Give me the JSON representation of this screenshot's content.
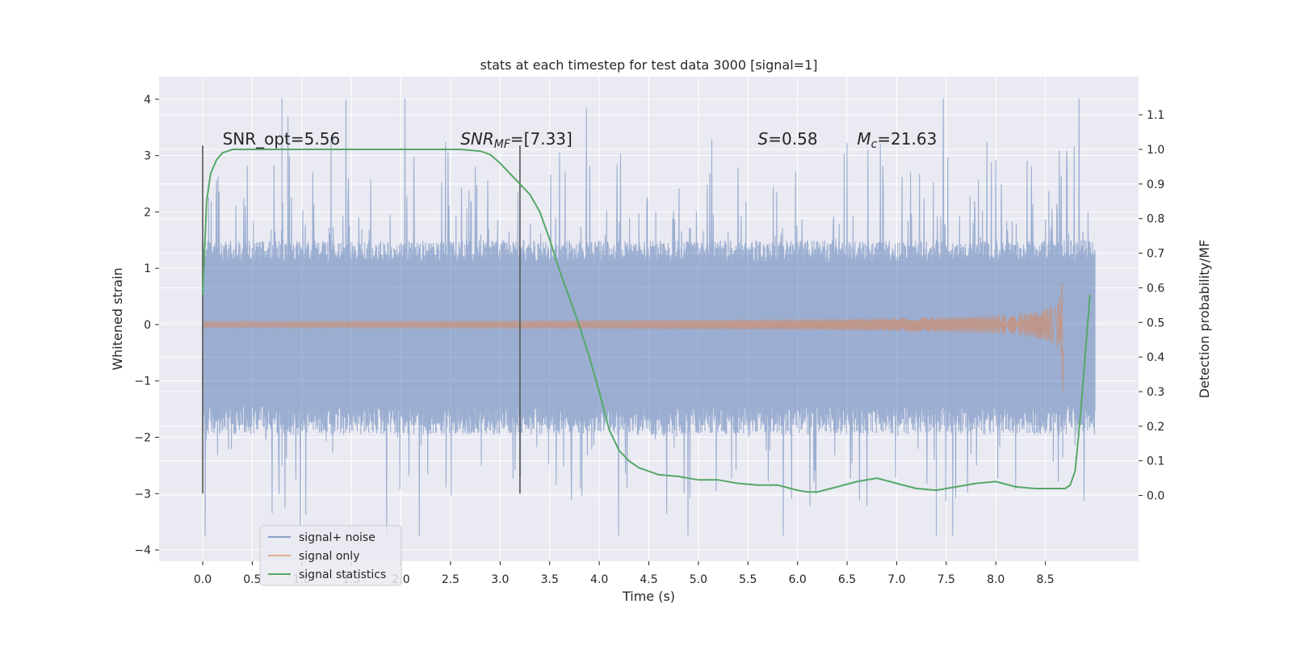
{
  "chart_data": {
    "type": "line",
    "title": "stats at each timestep for test data 3000 [signal=1]",
    "xlabel": "Time (s)",
    "ylabel_left": "Whitened strain",
    "ylabel_right": "Detection probability/MF",
    "xlim": [
      -0.44,
      9.44
    ],
    "ylim_left": [
      -4.2,
      4.4
    ],
    "ylim_right": [
      -0.19,
      1.21
    ],
    "x_ticks": [
      0.0,
      0.5,
      1.0,
      1.5,
      2.0,
      2.5,
      3.0,
      3.5,
      4.0,
      4.5,
      5.0,
      5.5,
      6.0,
      6.5,
      7.0,
      7.5,
      8.0,
      8.5
    ],
    "x_tick_labels": [
      "0.0",
      "0.5",
      "1.0",
      "1.5",
      "2.0",
      "2.5",
      "3.0",
      "3.5",
      "4.0",
      "4.5",
      "5.0",
      "5.5",
      "6.0",
      "6.5",
      "7.0",
      "7.5",
      "8.0",
      "8.5"
    ],
    "y_left_ticks": [
      4,
      3,
      2,
      1,
      0,
      -1,
      -2,
      -3,
      -4
    ],
    "y_left_tick_labels": [
      "4",
      "3",
      "2",
      "1",
      "0",
      "−1",
      "−2",
      "−3",
      "−4"
    ],
    "y_right_ticks": [
      1.1,
      1.0,
      0.9,
      0.8,
      0.7,
      0.6,
      0.5,
      0.4,
      0.3,
      0.2,
      0.1,
      0.0
    ],
    "y_right_tick_labels": [
      "1.1",
      "1.0",
      "0.9",
      "0.8",
      "0.7",
      "0.6",
      "0.5",
      "0.4",
      "0.3",
      "0.2",
      "0.1",
      "0.0"
    ],
    "colors": {
      "noise": "#4c72b0",
      "signal": "#dd8452",
      "stats": "#55a868",
      "background": "#eaeaf2",
      "grid": "#ffffff",
      "vline": "#555555"
    },
    "series": [
      {
        "name": "signal+ noise",
        "kind": "noisy-strain",
        "t_range": [
          0.0,
          9.0
        ],
        "core_band": [
          -1.7,
          1.3
        ],
        "typical_peak": [
          -3.3,
          3.3
        ],
        "max": 4.02,
        "min": -3.75
      },
      {
        "name": "signal only",
        "kind": "chirp",
        "t_range": [
          0.0,
          8.68
        ],
        "merger_time": 8.68,
        "peak_amplitude": 1.25
      },
      {
        "name": "signal statistics",
        "kind": "probability",
        "x": [
          0.0,
          0.04,
          0.08,
          0.14,
          0.2,
          0.3,
          0.5,
          1.0,
          2.0,
          2.6,
          2.8,
          2.9,
          3.0,
          3.1,
          3.2,
          3.3,
          3.4,
          3.5,
          3.6,
          3.7,
          3.8,
          3.9,
          4.0,
          4.1,
          4.2,
          4.3,
          4.4,
          4.5,
          4.6,
          4.8,
          5.0,
          5.2,
          5.4,
          5.6,
          5.8,
          6.0,
          6.1,
          6.2,
          6.4,
          6.6,
          6.8,
          7.0,
          7.2,
          7.4,
          7.6,
          7.8,
          8.0,
          8.2,
          8.4,
          8.6,
          8.7,
          8.75,
          8.8,
          8.85,
          8.9,
          8.95
        ],
        "y": [
          0.58,
          0.85,
          0.93,
          0.97,
          0.99,
          1.0,
          1.0,
          1.0,
          1.0,
          1.0,
          0.995,
          0.985,
          0.96,
          0.93,
          0.9,
          0.87,
          0.82,
          0.74,
          0.65,
          0.57,
          0.49,
          0.4,
          0.3,
          0.19,
          0.13,
          0.1,
          0.08,
          0.07,
          0.06,
          0.055,
          0.045,
          0.045,
          0.035,
          0.03,
          0.03,
          0.015,
          0.01,
          0.01,
          0.025,
          0.04,
          0.05,
          0.035,
          0.02,
          0.015,
          0.025,
          0.035,
          0.04,
          0.025,
          0.02,
          0.02,
          0.02,
          0.03,
          0.07,
          0.22,
          0.4,
          0.58
        ]
      }
    ],
    "vertical_lines": [
      {
        "x": 0.0,
        "y0": -3.0,
        "y1": 3.18
      },
      {
        "x": 3.2,
        "y0": -3.0,
        "y1": 3.18
      }
    ],
    "annotations": [
      {
        "id": "snr-opt",
        "x": 0.2,
        "y": 3.18,
        "text": "SNR_opt=5.56"
      },
      {
        "id": "snr-mf",
        "x": 2.6,
        "y": 3.18,
        "label_main": "SNR",
        "label_sub": "MF",
        "value": "=[7.33]"
      },
      {
        "id": "s-stat",
        "x": 5.6,
        "y": 3.18,
        "label_main": "S",
        "value": "=0.58"
      },
      {
        "id": "mc",
        "x": 6.6,
        "y": 3.18,
        "label_main": "M",
        "label_sub": "c",
        "value": "=21.63"
      }
    ],
    "legend": {
      "position": "lower-left",
      "entries": [
        "signal+ noise",
        "signal only",
        "signal statistics"
      ]
    }
  }
}
